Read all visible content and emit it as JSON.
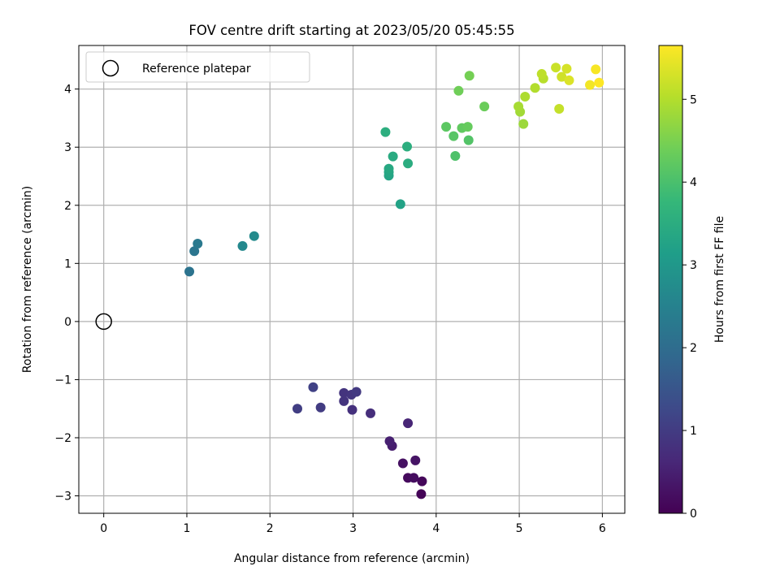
{
  "chart_data": {
    "type": "scatter",
    "title": "FOV centre drift starting at 2023/05/20 05:45:55",
    "xlabel": "Angular distance from reference (arcmin)",
    "ylabel": "Rotation from reference (arcmin)",
    "xlim": [
      -0.3,
      6.27
    ],
    "ylim": [
      -3.3,
      4.75
    ],
    "xticks": [
      0,
      1,
      2,
      3,
      4,
      5,
      6
    ],
    "yticks": [
      -3,
      -2,
      -1,
      0,
      1,
      2,
      3,
      4
    ],
    "grid": true,
    "legend": {
      "position": "top-left",
      "entries": [
        "Reference platepar"
      ]
    },
    "reference_point": {
      "x": 0,
      "y": 0
    },
    "colorbar": {
      "label": "Hours from first FF file",
      "colormap": "viridis",
      "range": [
        0,
        5.65
      ],
      "ticks": [
        0,
        1,
        2,
        3,
        4,
        5
      ]
    },
    "points": [
      {
        "x": 3.82,
        "y": -2.97,
        "c": 0.05
      },
      {
        "x": 3.83,
        "y": -2.75,
        "c": 0.1
      },
      {
        "x": 3.66,
        "y": -2.69,
        "c": 0.15
      },
      {
        "x": 3.73,
        "y": -2.69,
        "c": 0.2
      },
      {
        "x": 3.6,
        "y": -2.44,
        "c": 0.25
      },
      {
        "x": 3.75,
        "y": -2.39,
        "c": 0.3
      },
      {
        "x": 3.47,
        "y": -2.14,
        "c": 0.45
      },
      {
        "x": 3.44,
        "y": -2.06,
        "c": 0.5
      },
      {
        "x": 3.66,
        "y": -1.75,
        "c": 0.6
      },
      {
        "x": 3.21,
        "y": -1.58,
        "c": 0.75
      },
      {
        "x": 2.99,
        "y": -1.52,
        "c": 0.8
      },
      {
        "x": 2.89,
        "y": -1.37,
        "c": 0.85
      },
      {
        "x": 2.89,
        "y": -1.23,
        "c": 0.85
      },
      {
        "x": 2.98,
        "y": -1.26,
        "c": 0.9
      },
      {
        "x": 3.04,
        "y": -1.21,
        "c": 0.95
      },
      {
        "x": 2.61,
        "y": -1.48,
        "c": 1.0
      },
      {
        "x": 2.33,
        "y": -1.5,
        "c": 1.05
      },
      {
        "x": 2.52,
        "y": -1.13,
        "c": 1.1
      },
      {
        "x": 1.03,
        "y": 0.86,
        "c": 2.15
      },
      {
        "x": 1.09,
        "y": 1.21,
        "c": 2.2
      },
      {
        "x": 1.13,
        "y": 1.34,
        "c": 2.3
      },
      {
        "x": 1.67,
        "y": 1.3,
        "c": 2.65
      },
      {
        "x": 1.81,
        "y": 1.47,
        "c": 2.7
      },
      {
        "x": 3.57,
        "y": 2.02,
        "c": 3.25
      },
      {
        "x": 3.43,
        "y": 2.51,
        "c": 3.3
      },
      {
        "x": 3.43,
        "y": 2.57,
        "c": 3.35
      },
      {
        "x": 3.43,
        "y": 2.63,
        "c": 3.4
      },
      {
        "x": 3.48,
        "y": 2.84,
        "c": 3.45
      },
      {
        "x": 3.66,
        "y": 2.72,
        "c": 3.5
      },
      {
        "x": 3.65,
        "y": 3.01,
        "c": 3.55
      },
      {
        "x": 3.39,
        "y": 3.26,
        "c": 3.55
      },
      {
        "x": 4.23,
        "y": 2.85,
        "c": 4.05
      },
      {
        "x": 4.39,
        "y": 3.12,
        "c": 4.1
      },
      {
        "x": 4.21,
        "y": 3.19,
        "c": 4.15
      },
      {
        "x": 4.12,
        "y": 3.35,
        "c": 4.2
      },
      {
        "x": 4.31,
        "y": 3.33,
        "c": 4.25
      },
      {
        "x": 4.38,
        "y": 3.35,
        "c": 4.3
      },
      {
        "x": 4.58,
        "y": 3.7,
        "c": 4.35
      },
      {
        "x": 4.27,
        "y": 3.97,
        "c": 4.4
      },
      {
        "x": 4.4,
        "y": 4.23,
        "c": 4.45
      },
      {
        "x": 5.05,
        "y": 3.4,
        "c": 4.8
      },
      {
        "x": 5.01,
        "y": 3.61,
        "c": 4.85
      },
      {
        "x": 4.99,
        "y": 3.7,
        "c": 4.9
      },
      {
        "x": 5.07,
        "y": 3.87,
        "c": 4.95
      },
      {
        "x": 5.19,
        "y": 4.02,
        "c": 5.0
      },
      {
        "x": 5.29,
        "y": 4.18,
        "c": 5.05
      },
      {
        "x": 5.27,
        "y": 4.26,
        "c": 5.1
      },
      {
        "x": 5.48,
        "y": 3.66,
        "c": 5.15
      },
      {
        "x": 5.44,
        "y": 4.37,
        "c": 5.2
      },
      {
        "x": 5.51,
        "y": 4.21,
        "c": 5.25
      },
      {
        "x": 5.57,
        "y": 4.35,
        "c": 5.3
      },
      {
        "x": 5.6,
        "y": 4.15,
        "c": 5.35
      },
      {
        "x": 5.85,
        "y": 4.07,
        "c": 5.55
      },
      {
        "x": 5.92,
        "y": 4.34,
        "c": 5.6
      },
      {
        "x": 5.96,
        "y": 4.11,
        "c": 5.65
      }
    ]
  },
  "colors": {
    "viridis": [
      "#440154",
      "#482878",
      "#3e4989",
      "#31688e",
      "#26828e",
      "#1f9e89",
      "#35b779",
      "#6ece58",
      "#b5de2b",
      "#fde725"
    ],
    "grid": "#b0b0b0",
    "axis": "#000000",
    "reference_marker_edge": "#000000"
  }
}
